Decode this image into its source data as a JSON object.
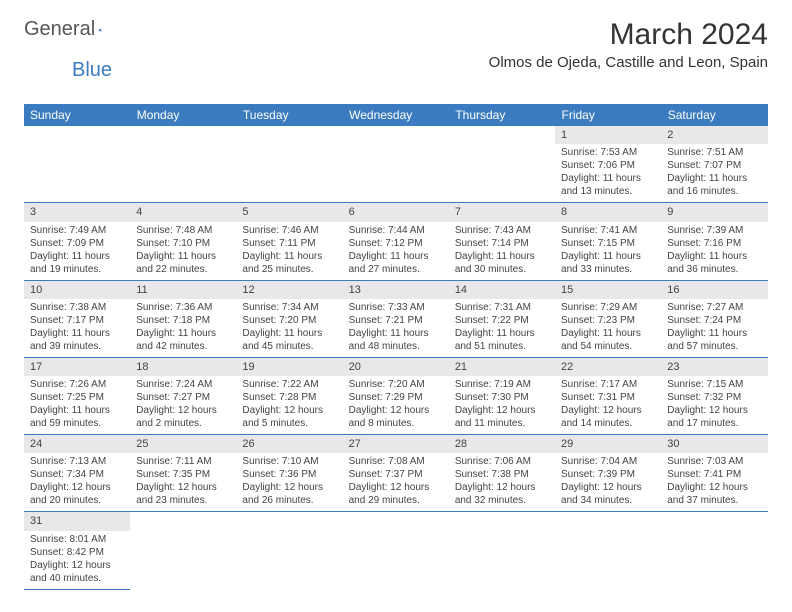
{
  "logo": {
    "text1": "General",
    "text2": "Blue"
  },
  "title": "March 2024",
  "location": "Olmos de Ojeda, Castille and Leon, Spain",
  "colors": {
    "header_bg": "#3b7bbf",
    "daynum_bg": "#e8e8e8",
    "divider": "#3b7bbf",
    "text": "#444444"
  },
  "daysOfWeek": [
    "Sunday",
    "Monday",
    "Tuesday",
    "Wednesday",
    "Thursday",
    "Friday",
    "Saturday"
  ],
  "weeks": [
    [
      null,
      null,
      null,
      null,
      null,
      {
        "n": "1",
        "sr": "7:53 AM",
        "ss": "7:06 PM",
        "dl": "11 hours and 13 minutes."
      },
      {
        "n": "2",
        "sr": "7:51 AM",
        "ss": "7:07 PM",
        "dl": "11 hours and 16 minutes."
      }
    ],
    [
      {
        "n": "3",
        "sr": "7:49 AM",
        "ss": "7:09 PM",
        "dl": "11 hours and 19 minutes."
      },
      {
        "n": "4",
        "sr": "7:48 AM",
        "ss": "7:10 PM",
        "dl": "11 hours and 22 minutes."
      },
      {
        "n": "5",
        "sr": "7:46 AM",
        "ss": "7:11 PM",
        "dl": "11 hours and 25 minutes."
      },
      {
        "n": "6",
        "sr": "7:44 AM",
        "ss": "7:12 PM",
        "dl": "11 hours and 27 minutes."
      },
      {
        "n": "7",
        "sr": "7:43 AM",
        "ss": "7:14 PM",
        "dl": "11 hours and 30 minutes."
      },
      {
        "n": "8",
        "sr": "7:41 AM",
        "ss": "7:15 PM",
        "dl": "11 hours and 33 minutes."
      },
      {
        "n": "9",
        "sr": "7:39 AM",
        "ss": "7:16 PM",
        "dl": "11 hours and 36 minutes."
      }
    ],
    [
      {
        "n": "10",
        "sr": "7:38 AM",
        "ss": "7:17 PM",
        "dl": "11 hours and 39 minutes."
      },
      {
        "n": "11",
        "sr": "7:36 AM",
        "ss": "7:18 PM",
        "dl": "11 hours and 42 minutes."
      },
      {
        "n": "12",
        "sr": "7:34 AM",
        "ss": "7:20 PM",
        "dl": "11 hours and 45 minutes."
      },
      {
        "n": "13",
        "sr": "7:33 AM",
        "ss": "7:21 PM",
        "dl": "11 hours and 48 minutes."
      },
      {
        "n": "14",
        "sr": "7:31 AM",
        "ss": "7:22 PM",
        "dl": "11 hours and 51 minutes."
      },
      {
        "n": "15",
        "sr": "7:29 AM",
        "ss": "7:23 PM",
        "dl": "11 hours and 54 minutes."
      },
      {
        "n": "16",
        "sr": "7:27 AM",
        "ss": "7:24 PM",
        "dl": "11 hours and 57 minutes."
      }
    ],
    [
      {
        "n": "17",
        "sr": "7:26 AM",
        "ss": "7:25 PM",
        "dl": "11 hours and 59 minutes."
      },
      {
        "n": "18",
        "sr": "7:24 AM",
        "ss": "7:27 PM",
        "dl": "12 hours and 2 minutes."
      },
      {
        "n": "19",
        "sr": "7:22 AM",
        "ss": "7:28 PM",
        "dl": "12 hours and 5 minutes."
      },
      {
        "n": "20",
        "sr": "7:20 AM",
        "ss": "7:29 PM",
        "dl": "12 hours and 8 minutes."
      },
      {
        "n": "21",
        "sr": "7:19 AM",
        "ss": "7:30 PM",
        "dl": "12 hours and 11 minutes."
      },
      {
        "n": "22",
        "sr": "7:17 AM",
        "ss": "7:31 PM",
        "dl": "12 hours and 14 minutes."
      },
      {
        "n": "23",
        "sr": "7:15 AM",
        "ss": "7:32 PM",
        "dl": "12 hours and 17 minutes."
      }
    ],
    [
      {
        "n": "24",
        "sr": "7:13 AM",
        "ss": "7:34 PM",
        "dl": "12 hours and 20 minutes."
      },
      {
        "n": "25",
        "sr": "7:11 AM",
        "ss": "7:35 PM",
        "dl": "12 hours and 23 minutes."
      },
      {
        "n": "26",
        "sr": "7:10 AM",
        "ss": "7:36 PM",
        "dl": "12 hours and 26 minutes."
      },
      {
        "n": "27",
        "sr": "7:08 AM",
        "ss": "7:37 PM",
        "dl": "12 hours and 29 minutes."
      },
      {
        "n": "28",
        "sr": "7:06 AM",
        "ss": "7:38 PM",
        "dl": "12 hours and 32 minutes."
      },
      {
        "n": "29",
        "sr": "7:04 AM",
        "ss": "7:39 PM",
        "dl": "12 hours and 34 minutes."
      },
      {
        "n": "30",
        "sr": "7:03 AM",
        "ss": "7:41 PM",
        "dl": "12 hours and 37 minutes."
      }
    ],
    [
      {
        "n": "31",
        "sr": "8:01 AM",
        "ss": "8:42 PM",
        "dl": "12 hours and 40 minutes."
      },
      null,
      null,
      null,
      null,
      null,
      null
    ]
  ],
  "labels": {
    "sunrise": "Sunrise: ",
    "sunset": "Sunset: ",
    "daylight": "Daylight: "
  }
}
